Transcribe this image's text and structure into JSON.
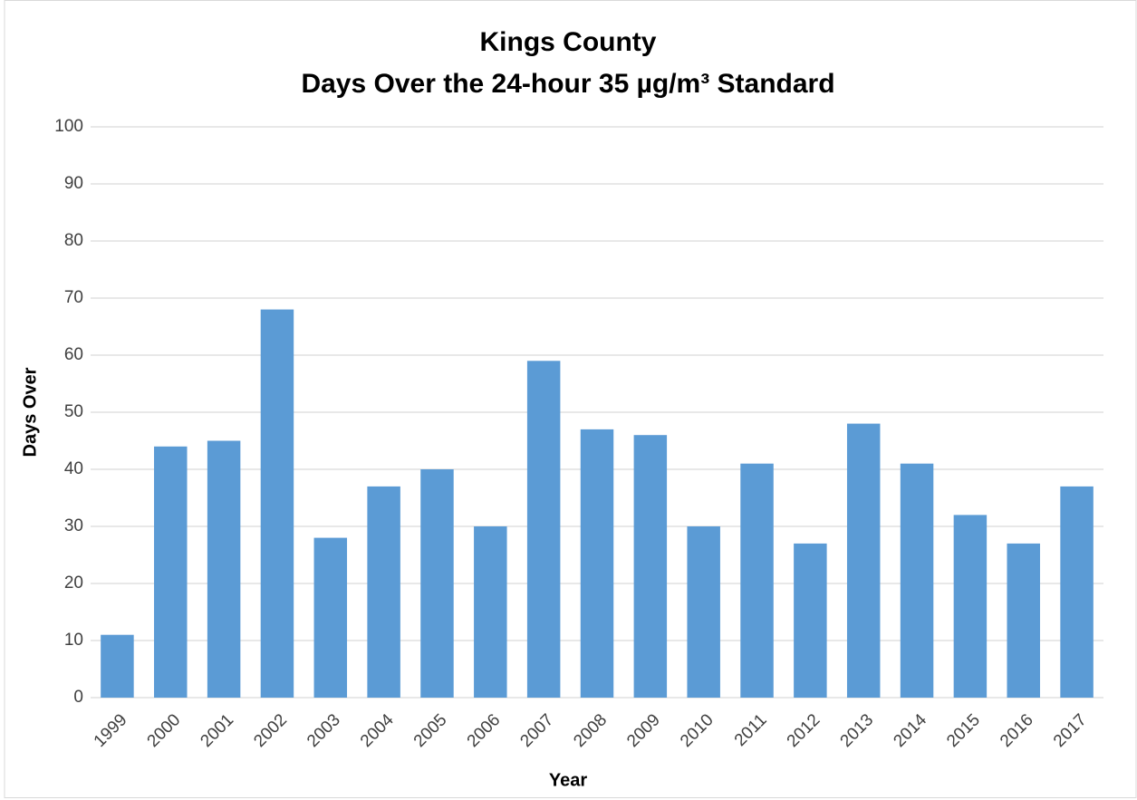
{
  "chart_data": {
    "type": "bar",
    "title": "Kings County",
    "subtitle": "Days Over the 24-hour 35 µg/m³ Standard",
    "x_label": "Year",
    "y_label": "Days Over",
    "categories": [
      "1999",
      "2000",
      "2001",
      "2002",
      "2003",
      "2004",
      "2005",
      "2006",
      "2007",
      "2008",
      "2009",
      "2010",
      "2011",
      "2012",
      "2013",
      "2014",
      "2015",
      "2016",
      "2017"
    ],
    "values": [
      11,
      44,
      45,
      68,
      28,
      37,
      40,
      30,
      59,
      47,
      46,
      30,
      41,
      27,
      48,
      41,
      32,
      27,
      37
    ],
    "color": "#5b9bd5",
    "ylim": [
      0,
      100
    ],
    "yticks": [
      0,
      10,
      20,
      30,
      40,
      50,
      60,
      70,
      80,
      90,
      100
    ],
    "grid": true
  }
}
